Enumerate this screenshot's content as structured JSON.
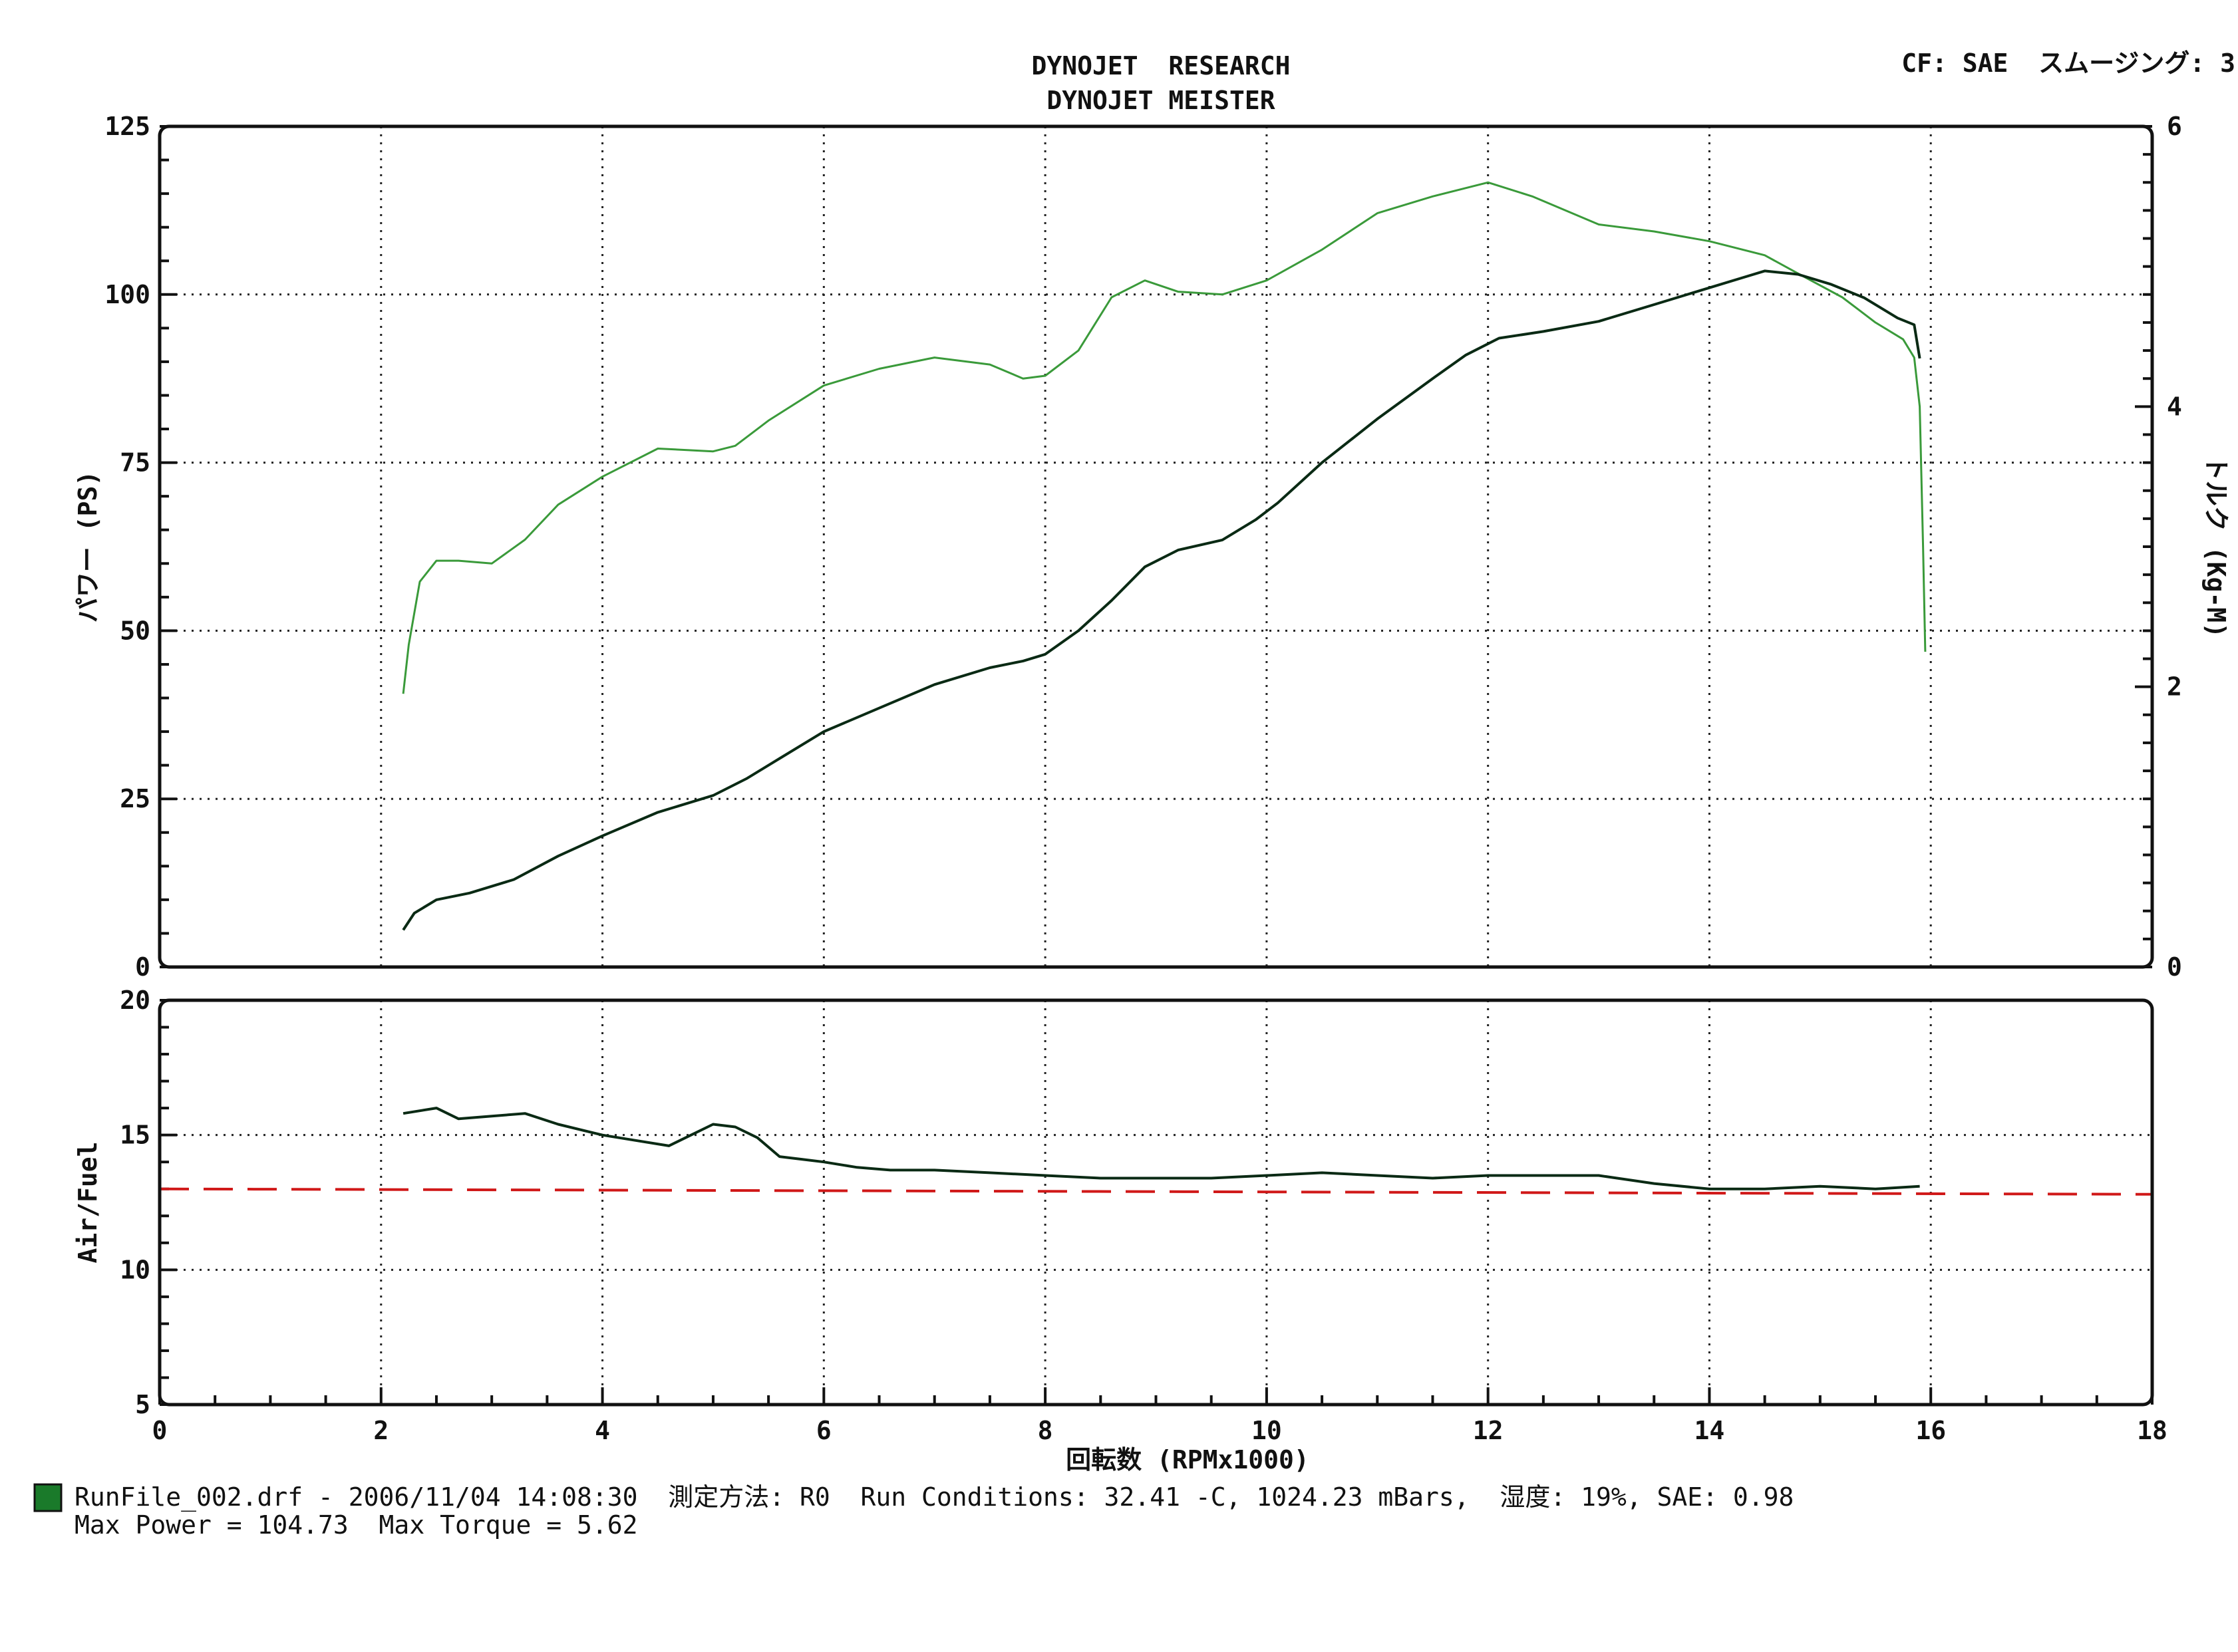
{
  "header": {
    "title_line1": "DYNOJET  RESEARCH",
    "title_line2": "DYNOJET MEISTER",
    "settings": "CF: SAE  スムージング: 3"
  },
  "footer": {
    "line1": "RunFile_002.drf - 2006/11/04 14:08:30  測定方法: R0  Run Conditions: 32.41 -C, 1024.23 mBars,  湿度: 19%, SAE: 0.98",
    "line2": "Max Power = 104.73  Max Torque = 5.62"
  },
  "colors": {
    "power_line": "#0a2a14",
    "torque_line": "#3a9a3a",
    "afr_line": "#0a2a14",
    "afr_target": "#d01818",
    "grid": "#222222",
    "frame": "#111111",
    "legend_swatch": "#1a7a2a"
  },
  "chart_data": [
    {
      "type": "line",
      "xlabel": "回転数 (RPMx1000)",
      "ylabel": "パワー (PS)",
      "y2label": "トルク (Kg-M)",
      "xlim": [
        0,
        18
      ],
      "ylim": [
        0,
        125
      ],
      "y2lim": [
        0,
        6
      ],
      "x_ticks": [
        "0",
        "2",
        "4",
        "6",
        "8",
        "10",
        "12",
        "14",
        "16",
        "18"
      ],
      "y_ticks": [
        "0",
        "25",
        "50",
        "75",
        "100",
        "125"
      ],
      "y2_ticks": [
        "0",
        "2",
        "4",
        "6"
      ],
      "grid": true,
      "series": [
        {
          "key": "power",
          "axis": "left",
          "x": [
            2.2,
            2.3,
            2.5,
            2.8,
            3.2,
            3.6,
            4.0,
            4.5,
            5.0,
            5.3,
            5.6,
            6.0,
            6.5,
            7.0,
            7.5,
            7.8,
            8.0,
            8.3,
            8.6,
            8.9,
            9.2,
            9.6,
            9.9,
            10.1,
            10.5,
            11.0,
            11.5,
            11.8,
            12.1,
            12.5,
            13.0,
            13.5,
            14.0,
            14.3,
            14.5,
            14.8,
            15.1,
            15.4,
            15.7,
            15.85,
            15.9
          ],
          "y": [
            5.5,
            8,
            10,
            11,
            13,
            16.5,
            19.5,
            23,
            25.5,
            28,
            31,
            35,
            38.5,
            42,
            44.5,
            45.5,
            46.5,
            50,
            54.5,
            59.5,
            62,
            63.5,
            66.5,
            69,
            75,
            81.5,
            87.5,
            91,
            93.5,
            94.5,
            96,
            98.5,
            101,
            102.5,
            103.5,
            103,
            101.5,
            99.5,
            96.5,
            95.5,
            90.5
          ]
        },
        {
          "key": "torque",
          "axis": "right",
          "x": [
            2.2,
            2.25,
            2.35,
            2.5,
            2.7,
            3.0,
            3.3,
            3.6,
            4.0,
            4.5,
            5.0,
            5.2,
            5.5,
            6.0,
            6.5,
            7.0,
            7.5,
            7.8,
            8.0,
            8.3,
            8.6,
            8.9,
            9.2,
            9.6,
            10.0,
            10.5,
            11.0,
            11.5,
            12.0,
            12.4,
            13.0,
            13.5,
            14.0,
            14.5,
            14.8,
            15.2,
            15.5,
            15.75,
            15.85,
            15.9,
            15.93,
            15.95
          ],
          "y": [
            1.95,
            2.3,
            2.75,
            2.9,
            2.9,
            2.88,
            3.05,
            3.3,
            3.5,
            3.7,
            3.68,
            3.72,
            3.9,
            4.15,
            4.27,
            4.35,
            4.3,
            4.2,
            4.22,
            4.4,
            4.78,
            4.9,
            4.82,
            4.8,
            4.9,
            5.12,
            5.38,
            5.5,
            5.6,
            5.5,
            5.3,
            5.25,
            5.18,
            5.08,
            4.95,
            4.78,
            4.6,
            4.48,
            4.35,
            4.0,
            3.0,
            2.25
          ]
        }
      ]
    },
    {
      "type": "line",
      "ylabel": "Air/Fuel",
      "xlim": [
        0,
        18
      ],
      "ylim": [
        5,
        20
      ],
      "y_ticks": [
        "5",
        "10",
        "15",
        "20"
      ],
      "grid": true,
      "series": [
        {
          "key": "afr",
          "x": [
            2.2,
            2.5,
            2.7,
            3.0,
            3.3,
            3.6,
            4.0,
            4.3,
            4.6,
            4.8,
            5.0,
            5.2,
            5.4,
            5.6,
            5.8,
            6.0,
            6.3,
            6.6,
            7.0,
            7.5,
            8.0,
            8.5,
            9.0,
            9.5,
            10.0,
            10.5,
            11.0,
            11.5,
            12.0,
            12.5,
            13.0,
            13.5,
            14.0,
            14.5,
            15.0,
            15.5,
            15.9
          ],
          "y": [
            15.8,
            16.0,
            15.6,
            15.7,
            15.8,
            15.4,
            15.0,
            14.8,
            14.6,
            15.0,
            15.4,
            15.3,
            14.9,
            14.2,
            14.1,
            14.0,
            13.8,
            13.7,
            13.7,
            13.6,
            13.5,
            13.4,
            13.4,
            13.4,
            13.5,
            13.6,
            13.5,
            13.4,
            13.5,
            13.5,
            13.5,
            13.2,
            13.0,
            13.0,
            13.1,
            13.0,
            13.1
          ]
        },
        {
          "key": "target",
          "x": [
            0,
            18
          ],
          "y": [
            13.0,
            12.8
          ]
        }
      ]
    }
  ]
}
